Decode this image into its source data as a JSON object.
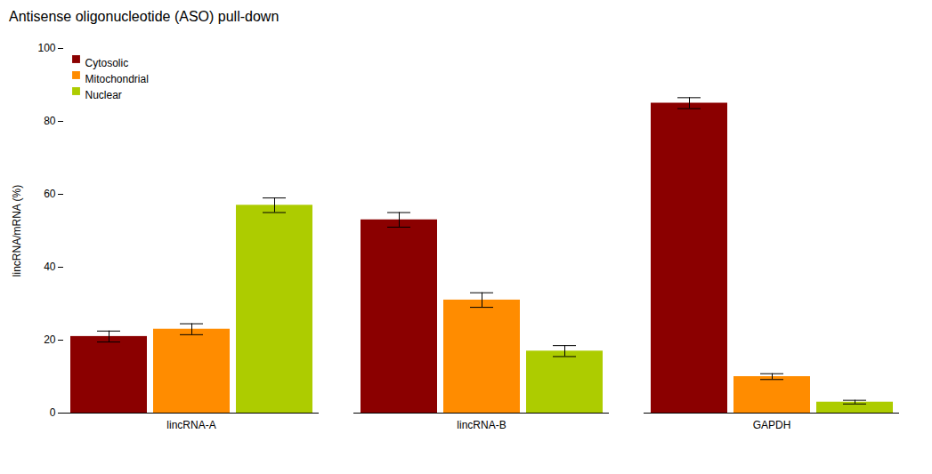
{
  "chart_data": {
    "type": "bar",
    "title": "Antisense oligonucleotide (ASO) pull-down",
    "categories": [
      "lincRNA-A",
      "lincRNA-B",
      "GAPDH"
    ],
    "series": [
      {
        "name": "Cytosolic",
        "color": "#8B0000",
        "values": [
          21,
          53,
          85
        ],
        "errors": [
          1.5,
          2.0,
          1.5
        ]
      },
      {
        "name": "Mitochondrial",
        "color": "#FF8C00",
        "values": [
          23,
          31,
          10
        ],
        "errors": [
          1.5,
          2.0,
          0.8
        ]
      },
      {
        "name": "Nuclear",
        "color": "#ADCC00",
        "values": [
          57,
          17,
          3
        ],
        "errors": [
          2.0,
          1.5,
          0.5
        ]
      }
    ],
    "ylabel": "lincRNA/mRNA (%)",
    "ylim": [
      0,
      100
    ],
    "yticks": [
      0,
      20,
      40,
      60,
      80,
      100
    ],
    "legend": "upper left",
    "grid": false
  }
}
